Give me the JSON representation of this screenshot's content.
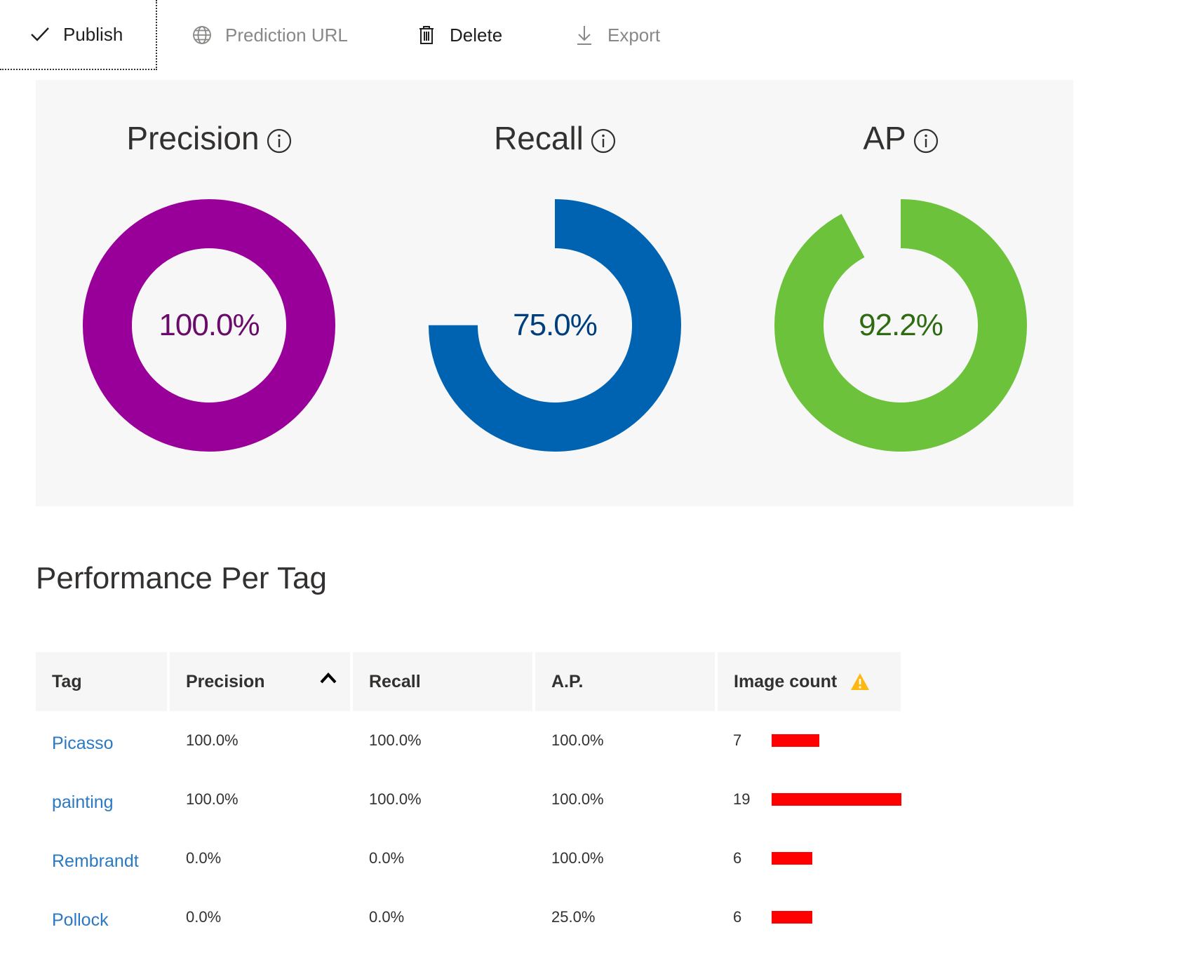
{
  "toolbar": {
    "publish": "Publish",
    "prediction_url": "Prediction URL",
    "delete": "Delete",
    "export": "Export"
  },
  "metrics": [
    {
      "title": "Precision",
      "value": "100.0%",
      "fraction": 1.0,
      "color": "#990099",
      "text_color": "#6a0a6a",
      "icon": "info-icon"
    },
    {
      "title": "Recall",
      "value": "75.0%",
      "fraction": 0.75,
      "color": "#0063b1",
      "text_color": "#003f7d",
      "icon": "info-icon"
    },
    {
      "title": "AP",
      "value": "92.2%",
      "fraction": 0.922,
      "color": "#6cc23a",
      "text_color": "#2e6b12",
      "icon": "info-icon"
    }
  ],
  "performance": {
    "title": "Performance Per Tag",
    "columns": {
      "tag": "Tag",
      "precision": "Precision",
      "recall": "Recall",
      "ap": "A.P.",
      "image_count": "Image count"
    },
    "sort_column": "precision",
    "bar_max": 19,
    "bar_color": "#ff0000",
    "rows": [
      {
        "tag": "Picasso",
        "precision": "100.0%",
        "recall": "100.0%",
        "ap": "100.0%",
        "image_count": "7",
        "count": 7
      },
      {
        "tag": "painting",
        "precision": "100.0%",
        "recall": "100.0%",
        "ap": "100.0%",
        "image_count": "19",
        "count": 19
      },
      {
        "tag": "Rembrandt",
        "precision": "0.0%",
        "recall": "0.0%",
        "ap": "100.0%",
        "image_count": "6",
        "count": 6
      },
      {
        "tag": "Pollock",
        "precision": "0.0%",
        "recall": "0.0%",
        "ap": "25.0%",
        "image_count": "6",
        "count": 6
      }
    ]
  }
}
